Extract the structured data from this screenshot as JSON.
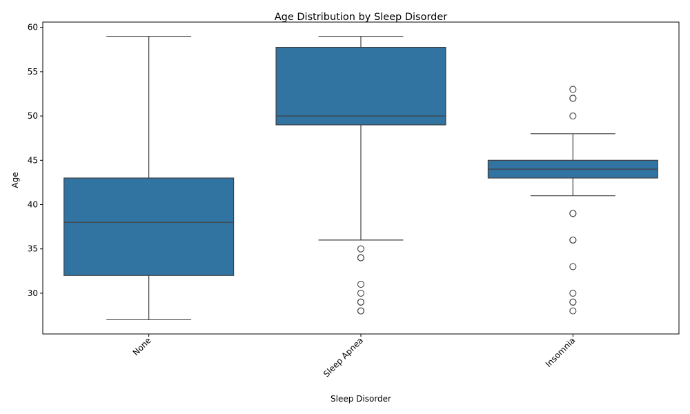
{
  "chart_data": {
    "type": "box",
    "title": "Age Distribution by Sleep Disorder",
    "xlabel": "Sleep Disorder",
    "ylabel": "Age",
    "categories": [
      "None",
      "Sleep Apnea",
      "Insomnia"
    ],
    "ylim": [
      25.4,
      60.6
    ],
    "yticks": [
      30,
      35,
      40,
      45,
      50,
      55,
      60
    ],
    "grid": false,
    "box_color": "#3274a1",
    "line_color": "#3f3f3f",
    "boxes": [
      {
        "category": "None",
        "whisker_low": 27,
        "q1": 32,
        "median": 38,
        "q3": 43,
        "whisker_high": 59,
        "outliers": []
      },
      {
        "category": "Sleep Apnea",
        "whisker_low": 36,
        "q1": 49,
        "median": 50,
        "q3": 57.75,
        "whisker_high": 59,
        "outliers": [
          35,
          34,
          34,
          31,
          30,
          29,
          29,
          28,
          28
        ]
      },
      {
        "category": "Insomnia",
        "whisker_low": 41,
        "q1": 43,
        "median": 44,
        "q3": 45,
        "whisker_high": 48,
        "outliers": [
          53,
          52,
          52,
          50,
          39,
          39,
          36,
          36,
          33,
          30,
          29,
          29,
          28
        ]
      }
    ]
  }
}
